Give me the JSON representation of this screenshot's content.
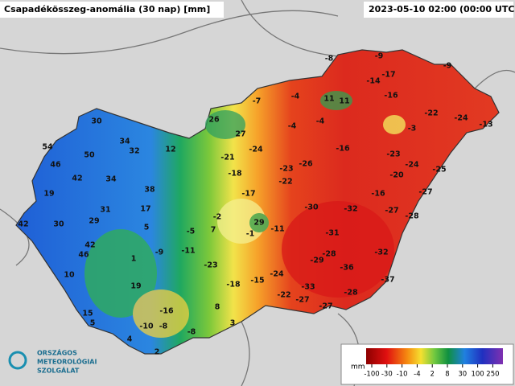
{
  "header": {
    "title": "Csapadékösszeg-anomália (30 nap) [mm]",
    "datetime": "2023-05-10 02:00 (00:00 UTC)"
  },
  "map": {
    "labels": [
      -8,
      -9,
      -17,
      -9,
      -14,
      -16,
      11,
      11,
      -7,
      -4,
      26,
      -4,
      -4,
      -22,
      -24,
      -13,
      -3,
      27,
      30,
      34,
      32,
      12,
      54,
      50,
      -24,
      -16,
      -23,
      46,
      -21,
      -26,
      -24,
      -25,
      42,
      34,
      -18,
      -23,
      -22,
      -20,
      38,
      19,
      -17,
      -16,
      -27,
      17,
      31,
      -2,
      29,
      -30,
      -32,
      -27,
      -28,
      42,
      30,
      29,
      5,
      7,
      -1,
      -11,
      -5,
      -31,
      42,
      46,
      -9,
      -11,
      -32,
      1,
      -29,
      -28,
      -23,
      -36,
      10,
      -24,
      -18,
      -15,
      -33,
      -37,
      19,
      -22,
      -27,
      -28,
      15,
      -16,
      8,
      -27,
      5,
      -10,
      -8,
      3,
      -8,
      4,
      2
    ]
  },
  "legend": {
    "unit": "mm",
    "ticks": [
      -100,
      -30,
      -10,
      -4,
      2,
      8,
      30,
      100,
      250
    ]
  },
  "logo": {
    "lines": [
      "ORSZÁGOS",
      "METEOROLÓGIAI",
      "SZOLGÁLAT"
    ]
  }
}
